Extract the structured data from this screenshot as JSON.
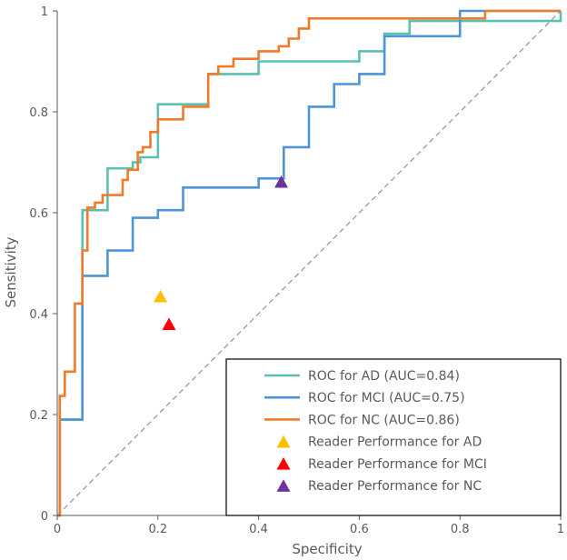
{
  "chart_data": {
    "type": "line",
    "title": "",
    "xlabel": "Specificity",
    "ylabel": "Sensitivity",
    "xlim": [
      0,
      1
    ],
    "ylim": [
      0,
      1
    ],
    "xticks": [
      {
        "value": 0,
        "label": "0"
      },
      {
        "value": 0.2,
        "label": "0.2"
      },
      {
        "value": 0.4,
        "label": "0.4"
      },
      {
        "value": 0.6,
        "label": "0.6"
      },
      {
        "value": 0.8,
        "label": "0.8"
      },
      {
        "value": 1,
        "label": "1"
      }
    ],
    "yticks": [
      {
        "value": 0,
        "label": "0"
      },
      {
        "value": 0.2,
        "label": "0.2"
      },
      {
        "value": 0.4,
        "label": "0.4"
      },
      {
        "value": 0.6,
        "label": "0.6"
      },
      {
        "value": 0.8,
        "label": "0.8"
      },
      {
        "value": 1,
        "label": "1"
      }
    ],
    "grid": false,
    "legend_position": "bottom-right",
    "reference_line": {
      "x": [
        0,
        1
      ],
      "y": [
        0,
        1
      ],
      "style": "dashed",
      "color": "#999999"
    },
    "series": [
      {
        "name": "ROC for AD (AUC=0.84)",
        "kind": "step",
        "color": "#5cc0b0",
        "x": [
          0,
          0.005,
          0.005,
          0.05,
          0.05,
          0.1,
          0.1,
          0.15,
          0.15,
          0.165,
          0.165,
          0.2,
          0.2,
          0.3,
          0.3,
          0.4,
          0.4,
          0.6,
          0.6,
          0.65,
          0.65,
          0.7,
          0.7,
          0.8,
          0.8,
          1,
          1
        ],
        "y": [
          0,
          0,
          0.19,
          0.19,
          0.605,
          0.605,
          0.688,
          0.688,
          0.7,
          0.7,
          0.71,
          0.71,
          0.815,
          0.815,
          0.875,
          0.875,
          0.9,
          0.9,
          0.92,
          0.92,
          0.955,
          0.955,
          0.98,
          0.98,
          0.98,
          0.98,
          1
        ]
      },
      {
        "name": "ROC for MCI (AUC=0.75)",
        "kind": "step",
        "color": "#4d94d8",
        "x": [
          0,
          0.005,
          0.005,
          0.05,
          0.05,
          0.1,
          0.1,
          0.15,
          0.15,
          0.2,
          0.2,
          0.25,
          0.25,
          0.4,
          0.4,
          0.45,
          0.45,
          0.5,
          0.5,
          0.55,
          0.55,
          0.6,
          0.6,
          0.65,
          0.65,
          0.8,
          0.8,
          1,
          1
        ],
        "y": [
          0,
          0,
          0.19,
          0.19,
          0.475,
          0.475,
          0.525,
          0.525,
          0.59,
          0.59,
          0.605,
          0.605,
          0.65,
          0.65,
          0.668,
          0.668,
          0.73,
          0.73,
          0.81,
          0.81,
          0.855,
          0.855,
          0.875,
          0.875,
          0.95,
          0.95,
          1,
          1,
          1
        ]
      },
      {
        "name": "ROC for NC (AUC=0.86)",
        "kind": "step",
        "color": "#f07a2a",
        "x": [
          0,
          0.005,
          0.005,
          0.015,
          0.015,
          0.035,
          0.035,
          0.05,
          0.05,
          0.06,
          0.06,
          0.075,
          0.075,
          0.09,
          0.09,
          0.13,
          0.13,
          0.14,
          0.14,
          0.16,
          0.16,
          0.17,
          0.17,
          0.185,
          0.185,
          0.2,
          0.2,
          0.25,
          0.25,
          0.3,
          0.3,
          0.32,
          0.32,
          0.35,
          0.35,
          0.4,
          0.4,
          0.44,
          0.44,
          0.46,
          0.46,
          0.48,
          0.48,
          0.5,
          0.5,
          0.85,
          0.85,
          1
        ],
        "y": [
          0,
          0,
          0.237,
          0.237,
          0.285,
          0.285,
          0.42,
          0.42,
          0.525,
          0.525,
          0.61,
          0.61,
          0.62,
          0.62,
          0.635,
          0.635,
          0.665,
          0.665,
          0.685,
          0.685,
          0.72,
          0.72,
          0.73,
          0.73,
          0.76,
          0.76,
          0.785,
          0.785,
          0.81,
          0.81,
          0.875,
          0.875,
          0.89,
          0.89,
          0.905,
          0.905,
          0.92,
          0.92,
          0.93,
          0.93,
          0.945,
          0.945,
          0.965,
          0.965,
          0.985,
          0.985,
          1,
          1
        ]
      }
    ],
    "points": [
      {
        "name": "Reader Performance for AD",
        "x": 0.205,
        "y": 0.433,
        "color": "#ffc000",
        "marker": "triangle"
      },
      {
        "name": "Reader Performance for MCI",
        "x": 0.222,
        "y": 0.378,
        "color": "#ff0000",
        "marker": "triangle"
      },
      {
        "name": "Reader Performance for NC",
        "x": 0.445,
        "y": 0.66,
        "color": "#7030a0",
        "marker": "triangle"
      }
    ]
  }
}
